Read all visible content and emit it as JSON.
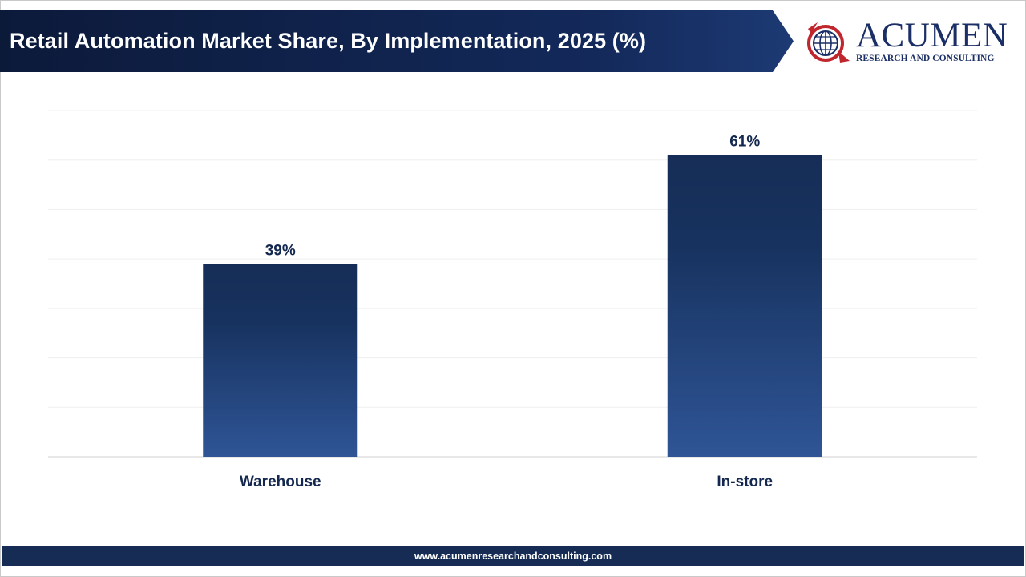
{
  "header": {
    "title": "Retail Automation Market Share, By Implementation, 2025 (%)"
  },
  "logo": {
    "name": "ACUMEN",
    "subtitle": "RESEARCH AND CONSULTING",
    "icon": "globe-icon"
  },
  "chart_data": {
    "type": "bar",
    "title": "Retail Automation Market Share, By Implementation, 2025 (%)",
    "categories": [
      "Warehouse",
      "In-store"
    ],
    "values": [
      39,
      61
    ],
    "value_labels": [
      "39%",
      "61%"
    ],
    "xlabel": "",
    "ylabel": "",
    "ylim": [
      0,
      70
    ],
    "grid": true,
    "legend": "none",
    "colors": {
      "bar_top": "#162e57",
      "bar_bottom": "#2f5596",
      "label": "#14284f"
    }
  },
  "footer": {
    "url": "www.acumenresearchandconsulting.com"
  },
  "colors": {
    "header_bg": "#0f2044",
    "accent": "#162c54",
    "logo_red": "#c0262d"
  }
}
